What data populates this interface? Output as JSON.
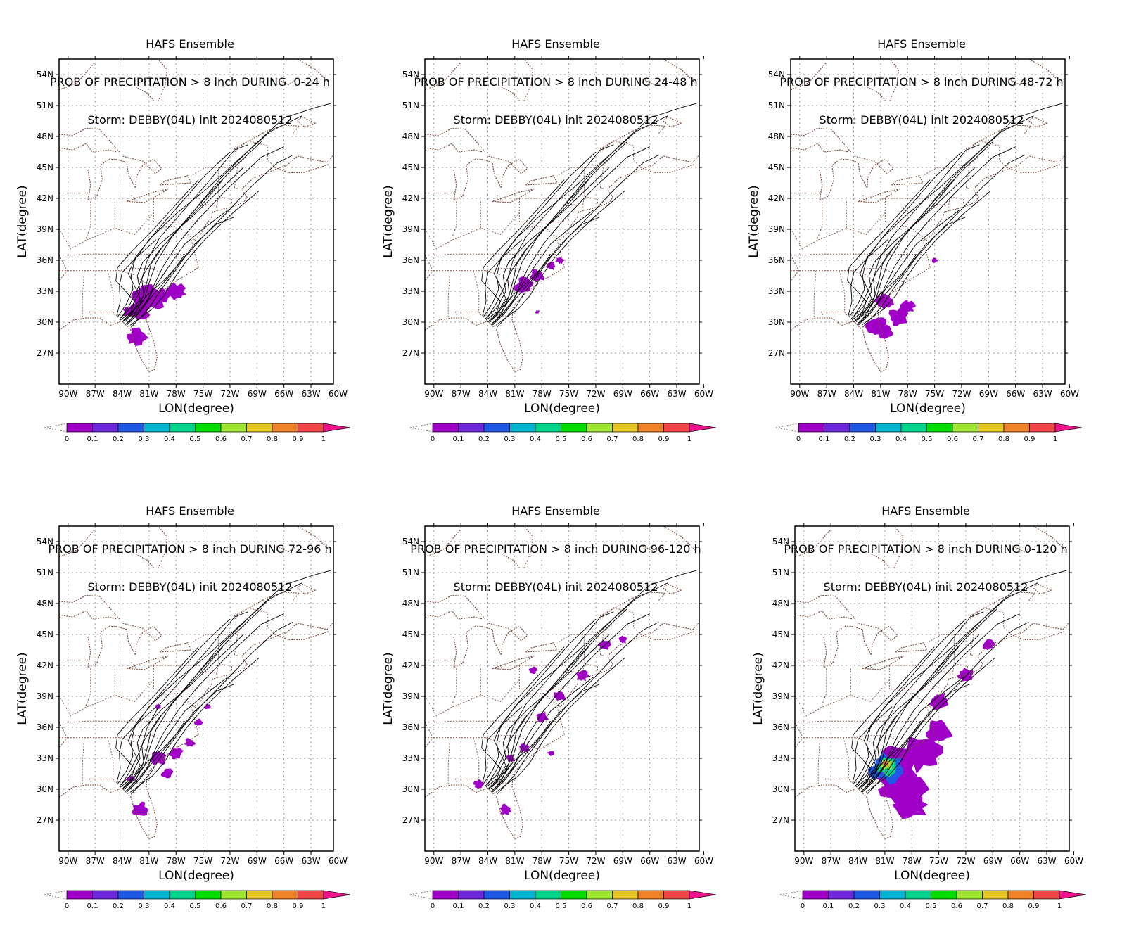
{
  "common": {
    "ensemble_title": "HAFS Ensemble",
    "storm_line": "Storm: DEBBY(04L) init 2024080512",
    "xlabel": "LON(degree)",
    "ylabel": "LAT(degree)",
    "lon_ticks": [
      "90W",
      "87W",
      "84W",
      "81W",
      "78W",
      "75W",
      "72W",
      "69W",
      "66W",
      "63W",
      "60W"
    ],
    "lat_ticks": [
      "54N",
      "51N",
      "48N",
      "45N",
      "42N",
      "39N",
      "36N",
      "33N",
      "30N",
      "27N"
    ],
    "lon_values": [
      -90,
      -87,
      -84,
      -81,
      -78,
      -75,
      -72,
      -69,
      -66,
      -63,
      -60
    ],
    "lat_values": [
      54,
      51,
      48,
      45,
      42,
      39,
      36,
      33,
      30,
      27
    ],
    "xlim": [
      -91,
      -60.5
    ],
    "ylim": [
      24,
      55.5
    ],
    "colorbar_labels": [
      "0",
      "0.1",
      "0.2",
      "0.3",
      "0.4",
      "0.5",
      "0.6",
      "0.7",
      "0.8",
      "0.9",
      "1"
    ],
    "colorbar_colors": [
      "#a000c8",
      "#6e28dc",
      "#1e5ae6",
      "#00b4d2",
      "#00d28c",
      "#00dc00",
      "#a0e632",
      "#e6c828",
      "#f08228",
      "#f04646",
      "#f0148c"
    ],
    "colors": {
      "track": "#000000",
      "coast": "#7a4a3a",
      "grid": "#9a9a9a",
      "prob_low": "#a000c8"
    }
  },
  "panels": [
    {
      "id": "0-24",
      "prob_line": "PROB OF PRECIPITATION > 8 inch DURING  0-24 h",
      "blobs": [
        {
          "lon": -81,
          "lat": 32.5,
          "r": 1.6
        },
        {
          "lon": -79.5,
          "lat": 32.5,
          "r": 0.8
        },
        {
          "lon": -78,
          "lat": 33,
          "r": 0.9
        },
        {
          "lon": -82,
          "lat": 31,
          "r": 1.0
        },
        {
          "lon": -83.2,
          "lat": 31,
          "r": 0.6
        },
        {
          "lon": -82.3,
          "lat": 28.5,
          "r": 1.0
        }
      ]
    },
    {
      "id": "24-48",
      "prob_line": "PROB OF PRECIPITATION > 8 inch DURING 24-48 h",
      "blobs": [
        {
          "lon": -80,
          "lat": 33.5,
          "r": 0.9
        },
        {
          "lon": -78.5,
          "lat": 34.5,
          "r": 0.7
        },
        {
          "lon": -77,
          "lat": 35.5,
          "r": 0.5
        },
        {
          "lon": -76,
          "lat": 36,
          "r": 0.4
        },
        {
          "lon": -78.5,
          "lat": 31,
          "r": 0.2
        }
      ]
    },
    {
      "id": "48-72",
      "prob_line": "PROB OF PRECIPITATION > 8 inch DURING 48-72 h",
      "blobs": [
        {
          "lon": -80.5,
          "lat": 32,
          "r": 0.9
        },
        {
          "lon": -81.5,
          "lat": 29.5,
          "r": 1.1
        },
        {
          "lon": -79,
          "lat": 30.5,
          "r": 1.0
        },
        {
          "lon": -78,
          "lat": 31.5,
          "r": 0.7
        },
        {
          "lon": -75,
          "lat": 36,
          "r": 0.3
        },
        {
          "lon": -80.5,
          "lat": 29,
          "r": 0.8
        }
      ]
    },
    {
      "id": "72-96",
      "prob_line": "PROB OF PRECIPITATION > 8 inch DURING 72-96 h",
      "blobs": [
        {
          "lon": -80,
          "lat": 33,
          "r": 0.8
        },
        {
          "lon": -78,
          "lat": 33.5,
          "r": 0.7
        },
        {
          "lon": -76.5,
          "lat": 34.5,
          "r": 0.5
        },
        {
          "lon": -75.5,
          "lat": 36.5,
          "r": 0.4
        },
        {
          "lon": -82,
          "lat": 28,
          "r": 0.8
        },
        {
          "lon": -83,
          "lat": 31,
          "r": 0.4
        },
        {
          "lon": -79,
          "lat": 31.5,
          "r": 0.6
        },
        {
          "lon": -80,
          "lat": 38,
          "r": 0.3
        },
        {
          "lon": -74.5,
          "lat": 38,
          "r": 0.3
        }
      ]
    },
    {
      "id": "96-120",
      "prob_line": "PROB OF PRECIPITATION > 8 inch DURING 96-120 h",
      "blobs": [
        {
          "lon": -78,
          "lat": 37,
          "r": 0.6
        },
        {
          "lon": -76,
          "lat": 39,
          "r": 0.6
        },
        {
          "lon": -73.5,
          "lat": 41,
          "r": 0.6
        },
        {
          "lon": -71,
          "lat": 44,
          "r": 0.6
        },
        {
          "lon": -69,
          "lat": 44.5,
          "r": 0.4
        },
        {
          "lon": -80,
          "lat": 34,
          "r": 0.5
        },
        {
          "lon": -81.5,
          "lat": 33,
          "r": 0.4
        },
        {
          "lon": -82,
          "lat": 28,
          "r": 0.6
        },
        {
          "lon": -85,
          "lat": 30.5,
          "r": 0.5
        },
        {
          "lon": -79,
          "lat": 41.5,
          "r": 0.4
        },
        {
          "lon": -77,
          "lat": 33.5,
          "r": 0.3
        }
      ]
    },
    {
      "id": "0-120",
      "prob_line": "PROB OF PRECIPITATION > 8 inch DURING 0-120 h",
      "blobs": [
        {
          "lon": -80,
          "lat": 32,
          "r": 2.4
        },
        {
          "lon": -79,
          "lat": 30,
          "r": 2.2
        },
        {
          "lon": -77,
          "lat": 33.5,
          "r": 2.0
        },
        {
          "lon": -78,
          "lat": 28.5,
          "r": 1.6
        },
        {
          "lon": -75,
          "lat": 35.5,
          "r": 1.3
        },
        {
          "lon": -75,
          "lat": 38.5,
          "r": 1.0
        },
        {
          "lon": -72,
          "lat": 41,
          "r": 0.8
        },
        {
          "lon": -69.5,
          "lat": 44,
          "r": 0.6
        }
      ],
      "hot": [
        {
          "lon": -80.8,
          "lat": 32,
          "r": 1.6,
          "c": 2
        },
        {
          "lon": -80.8,
          "lat": 32.2,
          "r": 1.0,
          "c": 4
        },
        {
          "lon": -80.8,
          "lat": 32.4,
          "r": 0.6,
          "c": 6
        },
        {
          "lon": -80.9,
          "lat": 32.5,
          "r": 0.35,
          "c": 8
        }
      ]
    }
  ]
}
